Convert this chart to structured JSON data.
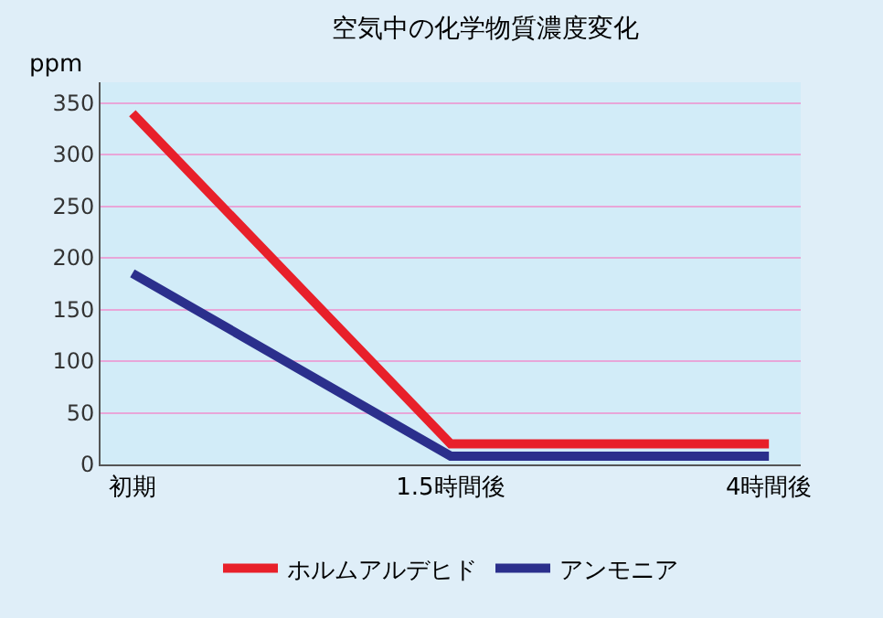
{
  "chart_data": {
    "type": "line",
    "title": "空気中の化学物質濃度変化",
    "ylabel": "ppm",
    "categories": [
      "初期",
      "1.5時間後",
      "4時間後"
    ],
    "series": [
      {
        "name": "ホルムアルデヒド",
        "color": "#e8202a",
        "values": [
          340,
          20,
          20
        ]
      },
      {
        "name": "アンモニア",
        "color": "#2b2f8c",
        "values": [
          185,
          8,
          8
        ]
      }
    ],
    "ylim": [
      0,
      370
    ],
    "yticks": [
      0,
      50,
      100,
      150,
      200,
      250,
      300,
      350
    ],
    "grid": "y",
    "legend": "bottom",
    "marker": "none",
    "line_style": "solid"
  }
}
